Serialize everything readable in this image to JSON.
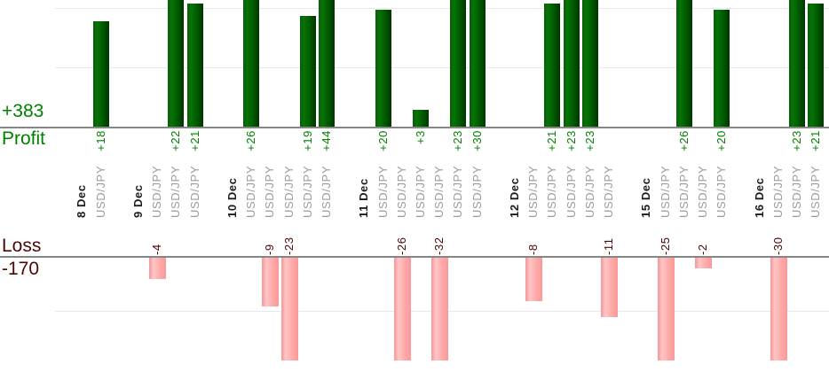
{
  "chart_data": {
    "type": "bar",
    "description": "Per-trade profit and loss bar chart grouped by day; green bars above zero line are profits, pink bars below are losses; tall bars are clipped by the visible crop",
    "instrument": "USD/JPY",
    "profit_total_label": "+383",
    "profit_axis_label": "Profit",
    "loss_axis_label": "Loss",
    "loss_total_label": "-170",
    "groups": [
      {
        "date": "8 Dec",
        "trades": [
          18
        ]
      },
      {
        "date": "9 Dec",
        "trades": [
          -4,
          22,
          21
        ]
      },
      {
        "date": "10 Dec",
        "trades": [
          26,
          -9,
          -23,
          19,
          44
        ]
      },
      {
        "date": "11 Dec",
        "trades": [
          20,
          -26,
          3,
          -32,
          23,
          30
        ]
      },
      {
        "date": "12 Dec",
        "trades": [
          -8,
          21,
          23,
          23,
          -11
        ]
      },
      {
        "date": "15 Dec",
        "trades": [
          -25,
          26,
          -2,
          20
        ]
      },
      {
        "date": "16 Dec",
        "trades": [
          -30,
          23,
          21
        ]
      }
    ],
    "gridline_values": {
      "profit": [
        10,
        20
      ],
      "loss": [
        -10
      ]
    },
    "grid": true,
    "legend": "none",
    "colors": {
      "profit_text": "#008000",
      "loss_text": "#4d0606",
      "profit_bar": "#006a00",
      "loss_bar": "#ffabab",
      "instrument_label": "#9b9b9b",
      "date_label": "#1c1c1c",
      "baseline": "#868686",
      "gridline": "#e9e9e9"
    }
  }
}
